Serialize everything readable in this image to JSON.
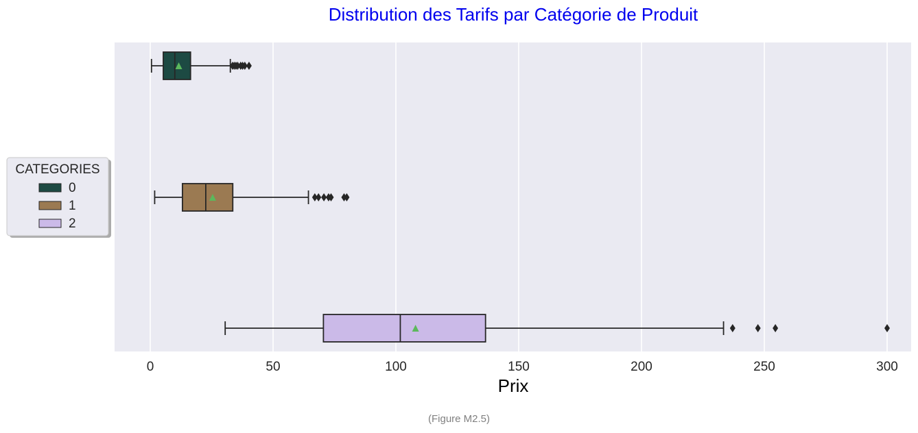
{
  "chart_data": {
    "type": "boxplot",
    "orientation": "horizontal",
    "title": "Distribution des Tarifs par Catégorie de Produit",
    "xlabel": "Prix",
    "ylabel": "",
    "xlim": [
      -15,
      310
    ],
    "xticks": [
      0,
      50,
      100,
      150,
      200,
      250,
      300
    ],
    "xtick_labels": [
      "0",
      "50",
      "100",
      "150",
      "200",
      "250",
      "300"
    ],
    "grid": true,
    "legend": {
      "title": "CATEGORIES",
      "placement": "left-center-outside",
      "entries": [
        {
          "label": "0",
          "color": "#1d4a43"
        },
        {
          "label": "1",
          "color": "#9b7a52"
        },
        {
          "label": "2",
          "color": "#cbbae8"
        }
      ]
    },
    "series": [
      {
        "name": "0",
        "color": "#1d4a43",
        "whisker_low": 0.5,
        "q1": 5.3,
        "median": 10,
        "q3": 16.4,
        "whisker_high": 32.6,
        "mean": 11.6,
        "outliers": [
          33.5,
          34.2,
          34.9,
          35.6,
          36.8,
          37.6,
          38.5,
          40.2
        ]
      },
      {
        "name": "1",
        "color": "#9b7a52",
        "whisker_low": 1.8,
        "q1": 13.1,
        "median": 22.6,
        "q3": 33.6,
        "whisker_high": 64.4,
        "mean": 25.4,
        "outliers": [
          67,
          68.5,
          70.7,
          72.6,
          73.6,
          78.9,
          80
        ]
      },
      {
        "name": "2",
        "color": "#cbbae8",
        "whisker_low": 30.5,
        "q1": 70.5,
        "median": 101.8,
        "q3": 136.5,
        "whisker_high": 233.4,
        "mean": 108,
        "outliers": [
          237.1,
          247.4,
          254.5,
          300
        ]
      }
    ],
    "mean_marker_color": "#5cb85c",
    "caption": "(Figure M2.5)"
  }
}
